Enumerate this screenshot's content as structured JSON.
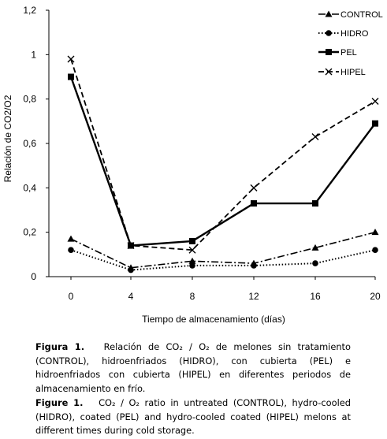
{
  "chart_data": {
    "type": "line",
    "title": "",
    "xlabel": "Tiempo de almacenamiento (días)",
    "ylabel": "Relación de CO2/O2",
    "x": [
      0,
      4,
      8,
      12,
      16,
      20
    ],
    "x_ticks": [
      "0",
      "4",
      "8",
      "12",
      "16",
      "20"
    ],
    "ylim": [
      0,
      1.2
    ],
    "y_ticks": [
      "0",
      "0,2",
      "0,4",
      "0,6",
      "0,8",
      "1",
      "1,2"
    ],
    "grid": false,
    "legend_position": "top-right",
    "series": [
      {
        "name": "CONTROL",
        "values": [
          0.17,
          0.04,
          0.07,
          0.06,
          0.13,
          0.2
        ],
        "color": "#000000",
        "line_style": "dash-dot",
        "marker": "triangle"
      },
      {
        "name": "HIDRO",
        "values": [
          0.12,
          0.03,
          0.05,
          0.05,
          0.06,
          0.12
        ],
        "color": "#000000",
        "line_style": "dotted",
        "marker": "circle"
      },
      {
        "name": "PEL",
        "values": [
          0.9,
          0.14,
          0.16,
          0.33,
          0.33,
          0.69
        ],
        "color": "#000000",
        "line_style": "solid",
        "marker": "square"
      },
      {
        "name": "HIPEL",
        "values": [
          0.98,
          0.14,
          0.12,
          0.4,
          0.63,
          0.79
        ],
        "color": "#000000",
        "line_style": "dashed",
        "marker": "cross"
      }
    ]
  },
  "caption_es": {
    "label": "Figura 1.",
    "text": "Relación de CO₂ / O₂ de melones sin tratamiento (CONTROL), hidroenfriados (HIDRO), con cubierta (PEL) e hidroenfriados con cubierta (HIPEL) en diferentes periodos de almacenamiento en frío."
  },
  "caption_en": {
    "label": "Figure 1.",
    "text": "CO₂ / O₂ ratio in untreated (CONTROL), hydro-cooled (HIDRO), coated (PEL) and hydro-cooled coated (HIPEL) melons at different times during cold storage."
  }
}
